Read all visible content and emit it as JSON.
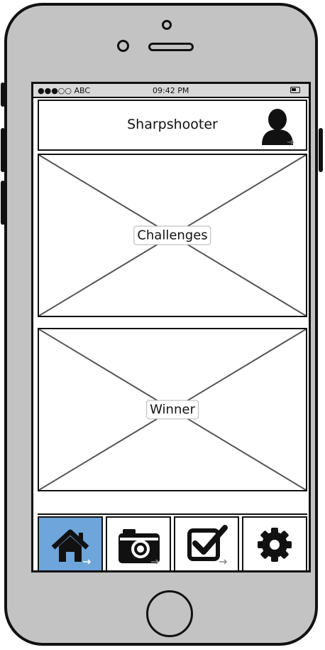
{
  "status_bar": {
    "carrier": "●●●○○ ABC",
    "time": "09:42 PM"
  },
  "header": {
    "title": "Sharpshooter",
    "profile_icon": "user-icon"
  },
  "panels": [
    {
      "label": "Challenges"
    },
    {
      "label": "Winner"
    }
  ],
  "tabs": [
    {
      "icon": "home-icon",
      "active": true
    },
    {
      "icon": "camera-icon",
      "active": false
    },
    {
      "icon": "checkbox-icon",
      "active": false
    },
    {
      "icon": "gear-icon",
      "active": false
    }
  ],
  "colors": {
    "active_tab": "#6ea5db",
    "device_body": "#c3c3c3"
  }
}
